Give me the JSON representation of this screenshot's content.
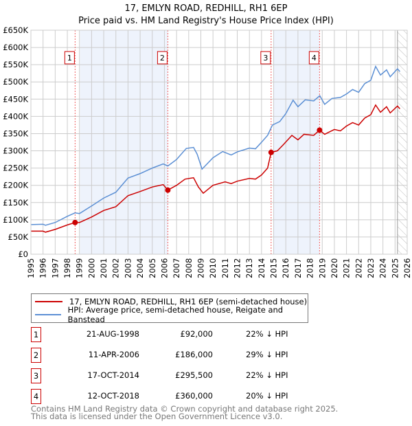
{
  "chart_data": {
    "type": "line",
    "title": "17, EMLYN ROAD, REDHILL, RH1 6EP",
    "subtitle": "Price paid vs. HM Land Registry's House Price Index (HPI)",
    "xlim": [
      1995,
      2026
    ],
    "ylim": [
      0,
      650000
    ],
    "x_ticks": [
      "1995",
      "1996",
      "1997",
      "1998",
      "1999",
      "2000",
      "2001",
      "2002",
      "2003",
      "2004",
      "2005",
      "2006",
      "2007",
      "2008",
      "2009",
      "2010",
      "2011",
      "2012",
      "2013",
      "2014",
      "2015",
      "2016",
      "2017",
      "2018",
      "2019",
      "2020",
      "2021",
      "2022",
      "2023",
      "2024",
      "2025",
      "2026"
    ],
    "y_ticks": [
      {
        "v": 0,
        "label": "£0"
      },
      {
        "v": 50000,
        "label": "£50K"
      },
      {
        "v": 100000,
        "label": "£100K"
      },
      {
        "v": 150000,
        "label": "£150K"
      },
      {
        "v": 200000,
        "label": "£200K"
      },
      {
        "v": 250000,
        "label": "£250K"
      },
      {
        "v": 300000,
        "label": "£300K"
      },
      {
        "v": 350000,
        "label": "£350K"
      },
      {
        "v": 400000,
        "label": "£400K"
      },
      {
        "v": 450000,
        "label": "£450K"
      },
      {
        "v": 500000,
        "label": "£500K"
      },
      {
        "v": 550000,
        "label": "£550K"
      },
      {
        "v": 600000,
        "label": "£600K"
      },
      {
        "v": 650000,
        "label": "£650K"
      }
    ],
    "grid": true,
    "shaded_ranges": [
      [
        1999.05,
        2006.28
      ],
      [
        2014.97,
        2018.78
      ]
    ],
    "forecast_hatch_from": 2025.2,
    "series": [
      {
        "name": "17, EMLYN ROAD, REDHILL, RH1 6EP (semi-detached house)",
        "color": "#cc0000",
        "x": [
          1995,
          1996,
          1996.2,
          1997,
          1998,
          1998.64,
          1999,
          2000,
          2001,
          2002,
          2003,
          2004,
          2005,
          2005.9,
          2006.28,
          2007,
          2007.7,
          2008.4,
          2008.8,
          2009.2,
          2010,
          2011,
          2011.5,
          2012,
          2013,
          2013.5,
          2014,
          2014.5,
          2014.79,
          2015.3,
          2015.8,
          2016.5,
          2017,
          2017.5,
          2018.3,
          2018.78,
          2019.2,
          2020,
          2020.5,
          2021,
          2021.5,
          2022,
          2022.5,
          2023,
          2023.4,
          2023.8,
          2024.3,
          2024.6,
          2025.2,
          2025.4
        ],
        "y": [
          67000,
          67000,
          64000,
          72000,
          85000,
          92000,
          92000,
          108000,
          127000,
          138000,
          170000,
          182000,
          195000,
          202000,
          186000,
          200000,
          218000,
          222000,
          195000,
          177000,
          200000,
          210000,
          205000,
          212000,
          220000,
          218000,
          230000,
          250000,
          295500,
          300000,
          318000,
          345000,
          332000,
          348000,
          345000,
          360000,
          348000,
          362000,
          358000,
          372000,
          382000,
          375000,
          395000,
          405000,
          433000,
          412000,
          428000,
          410000,
          430000,
          422000
        ]
      },
      {
        "name": "HPI: Average price, semi-detached house, Reigate and Banstead",
        "color": "#5b8fd4",
        "x": [
          1995,
          1996,
          1996.2,
          1997,
          1998,
          1998.64,
          1999,
          2000,
          2001,
          2002,
          2003,
          2004,
          2005,
          2005.9,
          2006.28,
          2007,
          2007.8,
          2008.4,
          2008.7,
          2009.1,
          2010,
          2010.8,
          2011.5,
          2012,
          2013,
          2013.5,
          2014,
          2014.5,
          2014.9,
          2015.5,
          2016,
          2016.6,
          2017,
          2017.6,
          2018.3,
          2018.8,
          2019.2,
          2019.8,
          2020.5,
          2021,
          2021.5,
          2022,
          2022.5,
          2023,
          2023.4,
          2023.8,
          2024.3,
          2024.6,
          2025.2,
          2025.4
        ],
        "y": [
          86000,
          87000,
          84000,
          92000,
          110000,
          120000,
          118000,
          140000,
          163000,
          180000,
          221000,
          234000,
          250000,
          262000,
          256000,
          275000,
          307000,
          310000,
          290000,
          247000,
          280000,
          298000,
          288000,
          297000,
          308000,
          306000,
          325000,
          345000,
          375000,
          385000,
          408000,
          447000,
          428000,
          448000,
          445000,
          460000,
          435000,
          452000,
          455000,
          465000,
          478000,
          470000,
          495000,
          505000,
          545000,
          520000,
          535000,
          515000,
          538000,
          530000
        ]
      }
    ],
    "sales": [
      {
        "label": "1",
        "x": 1998.64,
        "y": 92000
      },
      {
        "label": "2",
        "x": 2006.28,
        "y": 186000
      },
      {
        "label": "3",
        "x": 2014.79,
        "y": 295500
      },
      {
        "label": "4",
        "x": 2018.78,
        "y": 360000
      }
    ]
  },
  "legend": {
    "red": "17, EMLYN ROAD, REDHILL, RH1 6EP (semi-detached house)",
    "blue": "HPI: Average price, semi-detached house, Reigate and Banstead"
  },
  "table": [
    {
      "num": "1",
      "date": "21-AUG-1998",
      "price": "£92,000",
      "hpi": "22% ↓ HPI"
    },
    {
      "num": "2",
      "date": "11-APR-2006",
      "price": "£186,000",
      "hpi": "29% ↓ HPI"
    },
    {
      "num": "3",
      "date": "17-OCT-2014",
      "price": "£295,500",
      "hpi": "22% ↓ HPI"
    },
    {
      "num": "4",
      "date": "12-OCT-2018",
      "price": "£360,000",
      "hpi": "20% ↓ HPI"
    }
  ],
  "footer": {
    "line1": "Contains HM Land Registry data © Crown copyright and database right 2025.",
    "line2": "This data is licensed under the Open Government Licence v3.0."
  }
}
